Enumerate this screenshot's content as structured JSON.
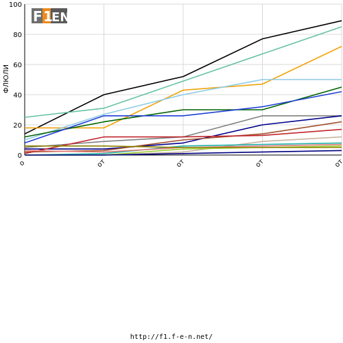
{
  "footer": {
    "url": "http://f1.f-e-n.net/"
  },
  "chart_data": {
    "type": "line",
    "title": "",
    "ylabel": "ФЛЮЛИ",
    "xlabel": "",
    "ylim": [
      0,
      100
    ],
    "yticks": [
      0,
      20,
      40,
      60,
      80,
      100
    ],
    "x": [
      0,
      1,
      2,
      3,
      4
    ],
    "x_tick_labels": [
      "о",
      "от",
      "от",
      "от",
      "от"
    ],
    "grid": true,
    "legend": "none",
    "series": [
      {
        "color": "#000000",
        "values": [
          14,
          40,
          52,
          77,
          89
        ]
      },
      {
        "color": "#66c2a5",
        "values": [
          25,
          31,
          49,
          67,
          85
        ]
      },
      {
        "color": "#f0a30a",
        "values": [
          18,
          18,
          43,
          47,
          72
        ]
      },
      {
        "color": "#8ecae6",
        "values": [
          10,
          27,
          40,
          50,
          50
        ]
      },
      {
        "color": "#006400",
        "values": [
          12,
          22,
          30,
          30,
          45
        ]
      },
      {
        "color": "#1f3fd6",
        "values": [
          8,
          26,
          26,
          32,
          42
        ]
      },
      {
        "color": "#808080",
        "values": [
          5,
          9,
          12,
          26,
          26
        ]
      },
      {
        "color": "#00008b",
        "values": [
          4,
          4,
          8,
          20,
          26
        ]
      },
      {
        "color": "#a0522d",
        "values": [
          2,
          3,
          10,
          14,
          22
        ]
      },
      {
        "color": "#c0262c",
        "values": [
          1,
          12,
          12,
          13,
          17
        ]
      },
      {
        "color": "#c8b4a0",
        "values": [
          0,
          0,
          2,
          9,
          12
        ]
      },
      {
        "color": "#20b2aa",
        "values": [
          0,
          1,
          6,
          7,
          8
        ]
      },
      {
        "color": "#e07b7b",
        "values": [
          3,
          2,
          5,
          6,
          7
        ]
      },
      {
        "color": "#9acd32",
        "values": [
          0,
          0,
          4,
          5,
          6
        ]
      },
      {
        "color": "#8b8000",
        "values": [
          6,
          6,
          5,
          5,
          5
        ]
      },
      {
        "color": "#000080",
        "values": [
          0,
          0,
          1,
          2,
          3
        ]
      }
    ]
  }
}
